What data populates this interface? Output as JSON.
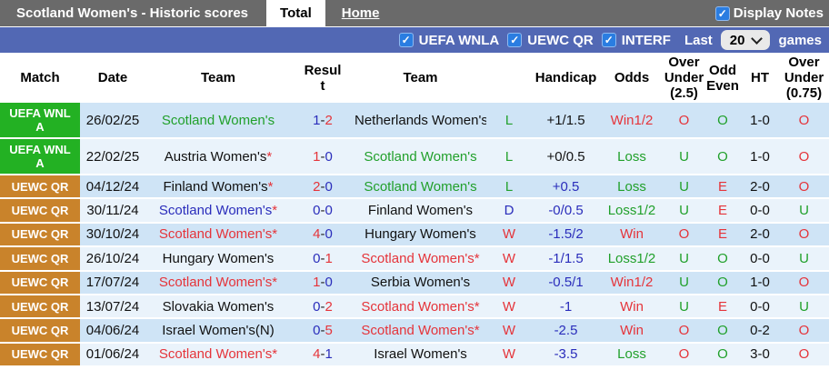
{
  "header_bar": {
    "title": "Scotland Women's - Historic scores",
    "tabs": [
      {
        "label": "Total",
        "active": true
      },
      {
        "label": "Home",
        "active": false
      }
    ],
    "display_notes": {
      "label": "Display Notes",
      "checked": true
    }
  },
  "filter_bar": {
    "checkboxes": [
      {
        "label": "UEFA WNLA",
        "checked": true
      },
      {
        "label": "UEWC QR",
        "checked": true
      },
      {
        "label": "INTERF",
        "checked": true
      }
    ],
    "last_label": "Last",
    "selected_count": "20",
    "games_label": "games"
  },
  "icons": {
    "checkmark": "✓",
    "star": "*",
    "result_separator": "-"
  },
  "colors": {
    "topbar_bg": "#6a6a6a",
    "filter_bar_bg": "#5268b4",
    "uefa_badge": "#23b123",
    "uewc_badge": "#c9832b",
    "row_dark": "#cfe4f6",
    "row_light": "#eaf3fb",
    "win_red": "#e5343a",
    "loss_green": "#21a02b",
    "draw_blue": "#2a2dbb",
    "checkbox_blue": "#2a7de1"
  },
  "table": {
    "columns": [
      "Match",
      "Date",
      "Team",
      "Resul\nt",
      "Team",
      "",
      "Handicap",
      "Odds",
      "Over\nUnder\n(2.5)",
      "Odd\nEven",
      "HT",
      "Over\nUnder\n(0.75)"
    ],
    "rows": [
      {
        "match": {
          "label": "UEFA WNL\nA",
          "type": "uefa"
        },
        "date": "26/02/25",
        "home": {
          "name": "Scotland Women's",
          "color": "green",
          "star": false
        },
        "result": {
          "home": "1",
          "away": "2",
          "home_color": "blue",
          "away_color": "red"
        },
        "away": {
          "name": "Netherlands Women's",
          "color": "black",
          "star": true
        },
        "wdl": {
          "text": "L",
          "color": "green"
        },
        "handicap": {
          "text": "+1/1.5",
          "color": "black"
        },
        "odds": {
          "text": "Win1/2",
          "color": "red"
        },
        "ou25": {
          "text": "O",
          "color": "red"
        },
        "oddeven": {
          "text": "O",
          "color": "green"
        },
        "ht": "1-0",
        "ou075": {
          "text": "O",
          "color": "red"
        }
      },
      {
        "match": {
          "label": "UEFA WNL\nA",
          "type": "uefa"
        },
        "date": "22/02/25",
        "home": {
          "name": "Austria Women's",
          "color": "black",
          "star": true
        },
        "result": {
          "home": "1",
          "away": "0",
          "home_color": "red",
          "away_color": "blue"
        },
        "away": {
          "name": "Scotland Women's",
          "color": "green",
          "star": false
        },
        "wdl": {
          "text": "L",
          "color": "green"
        },
        "handicap": {
          "text": "+0/0.5",
          "color": "black"
        },
        "odds": {
          "text": "Loss",
          "color": "green"
        },
        "ou25": {
          "text": "U",
          "color": "green"
        },
        "oddeven": {
          "text": "O",
          "color": "green"
        },
        "ht": "1-0",
        "ou075": {
          "text": "O",
          "color": "red"
        }
      },
      {
        "match": {
          "label": "UEWC QR",
          "type": "uewc"
        },
        "date": "04/12/24",
        "home": {
          "name": "Finland Women's",
          "color": "black",
          "star": true
        },
        "result": {
          "home": "2",
          "away": "0",
          "home_color": "red",
          "away_color": "blue"
        },
        "away": {
          "name": "Scotland Women's",
          "color": "green",
          "star": false
        },
        "wdl": {
          "text": "L",
          "color": "green"
        },
        "handicap": {
          "text": "+0.5",
          "color": "blue"
        },
        "odds": {
          "text": "Loss",
          "color": "green"
        },
        "ou25": {
          "text": "U",
          "color": "green"
        },
        "oddeven": {
          "text": "E",
          "color": "red"
        },
        "ht": "2-0",
        "ou075": {
          "text": "O",
          "color": "red"
        }
      },
      {
        "match": {
          "label": "UEWC QR",
          "type": "uewc"
        },
        "date": "30/11/24",
        "home": {
          "name": "Scotland Women's",
          "color": "blue",
          "star": true
        },
        "result": {
          "home": "0",
          "away": "0",
          "home_color": "blue",
          "away_color": "blue"
        },
        "away": {
          "name": "Finland Women's",
          "color": "black",
          "star": false
        },
        "wdl": {
          "text": "D",
          "color": "blue"
        },
        "handicap": {
          "text": "-0/0.5",
          "color": "blue"
        },
        "odds": {
          "text": "Loss1/2",
          "color": "green"
        },
        "ou25": {
          "text": "U",
          "color": "green"
        },
        "oddeven": {
          "text": "E",
          "color": "red"
        },
        "ht": "0-0",
        "ou075": {
          "text": "U",
          "color": "green"
        }
      },
      {
        "match": {
          "label": "UEWC QR",
          "type": "uewc"
        },
        "date": "30/10/24",
        "home": {
          "name": "Scotland Women's",
          "color": "red",
          "star": true
        },
        "result": {
          "home": "4",
          "away": "0",
          "home_color": "red",
          "away_color": "blue"
        },
        "away": {
          "name": "Hungary Women's",
          "color": "black",
          "star": false
        },
        "wdl": {
          "text": "W",
          "color": "red"
        },
        "handicap": {
          "text": "-1.5/2",
          "color": "blue"
        },
        "odds": {
          "text": "Win",
          "color": "red"
        },
        "ou25": {
          "text": "O",
          "color": "red"
        },
        "oddeven": {
          "text": "E",
          "color": "red"
        },
        "ht": "2-0",
        "ou075": {
          "text": "O",
          "color": "red"
        }
      },
      {
        "match": {
          "label": "UEWC QR",
          "type": "uewc"
        },
        "date": "26/10/24",
        "home": {
          "name": "Hungary Women's",
          "color": "black",
          "star": false
        },
        "result": {
          "home": "0",
          "away": "1",
          "home_color": "blue",
          "away_color": "red"
        },
        "away": {
          "name": "Scotland Women's",
          "color": "red",
          "star": true
        },
        "wdl": {
          "text": "W",
          "color": "red"
        },
        "handicap": {
          "text": "-1/1.5",
          "color": "blue"
        },
        "odds": {
          "text": "Loss1/2",
          "color": "green"
        },
        "ou25": {
          "text": "U",
          "color": "green"
        },
        "oddeven": {
          "text": "O",
          "color": "green"
        },
        "ht": "0-0",
        "ou075": {
          "text": "U",
          "color": "green"
        }
      },
      {
        "match": {
          "label": "UEWC QR",
          "type": "uewc"
        },
        "date": "17/07/24",
        "home": {
          "name": "Scotland Women's",
          "color": "red",
          "star": true
        },
        "result": {
          "home": "1",
          "away": "0",
          "home_color": "red",
          "away_color": "blue"
        },
        "away": {
          "name": "Serbia Women's",
          "color": "black",
          "star": false
        },
        "wdl": {
          "text": "W",
          "color": "red"
        },
        "handicap": {
          "text": "-0.5/1",
          "color": "blue"
        },
        "odds": {
          "text": "Win1/2",
          "color": "red"
        },
        "ou25": {
          "text": "U",
          "color": "green"
        },
        "oddeven": {
          "text": "O",
          "color": "green"
        },
        "ht": "1-0",
        "ou075": {
          "text": "O",
          "color": "red"
        }
      },
      {
        "match": {
          "label": "UEWC QR",
          "type": "uewc"
        },
        "date": "13/07/24",
        "home": {
          "name": "Slovakia Women's",
          "color": "black",
          "star": false
        },
        "result": {
          "home": "0",
          "away": "2",
          "home_color": "blue",
          "away_color": "red"
        },
        "away": {
          "name": "Scotland Women's",
          "color": "red",
          "star": true
        },
        "wdl": {
          "text": "W",
          "color": "red"
        },
        "handicap": {
          "text": "-1",
          "color": "blue"
        },
        "odds": {
          "text": "Win",
          "color": "red"
        },
        "ou25": {
          "text": "U",
          "color": "green"
        },
        "oddeven": {
          "text": "E",
          "color": "red"
        },
        "ht": "0-0",
        "ou075": {
          "text": "U",
          "color": "green"
        }
      },
      {
        "match": {
          "label": "UEWC QR",
          "type": "uewc"
        },
        "date": "04/06/24",
        "home": {
          "name": "Israel Women's(N)",
          "color": "black",
          "star": false
        },
        "result": {
          "home": "0",
          "away": "5",
          "home_color": "blue",
          "away_color": "red"
        },
        "away": {
          "name": "Scotland Women's",
          "color": "red",
          "star": true
        },
        "wdl": {
          "text": "W",
          "color": "red"
        },
        "handicap": {
          "text": "-2.5",
          "color": "blue"
        },
        "odds": {
          "text": "Win",
          "color": "red"
        },
        "ou25": {
          "text": "O",
          "color": "red"
        },
        "oddeven": {
          "text": "O",
          "color": "green"
        },
        "ht": "0-2",
        "ou075": {
          "text": "O",
          "color": "red"
        }
      },
      {
        "match": {
          "label": "UEWC QR",
          "type": "uewc"
        },
        "date": "01/06/24",
        "home": {
          "name": "Scotland Women's",
          "color": "red",
          "star": true
        },
        "result": {
          "home": "4",
          "away": "1",
          "home_color": "red",
          "away_color": "blue"
        },
        "away": {
          "name": "Israel Women's",
          "color": "black",
          "star": false
        },
        "wdl": {
          "text": "W",
          "color": "red"
        },
        "handicap": {
          "text": "-3.5",
          "color": "blue"
        },
        "odds": {
          "text": "Loss",
          "color": "green"
        },
        "ou25": {
          "text": "O",
          "color": "red"
        },
        "oddeven": {
          "text": "O",
          "color": "green"
        },
        "ht": "3-0",
        "ou075": {
          "text": "O",
          "color": "red"
        }
      }
    ]
  }
}
